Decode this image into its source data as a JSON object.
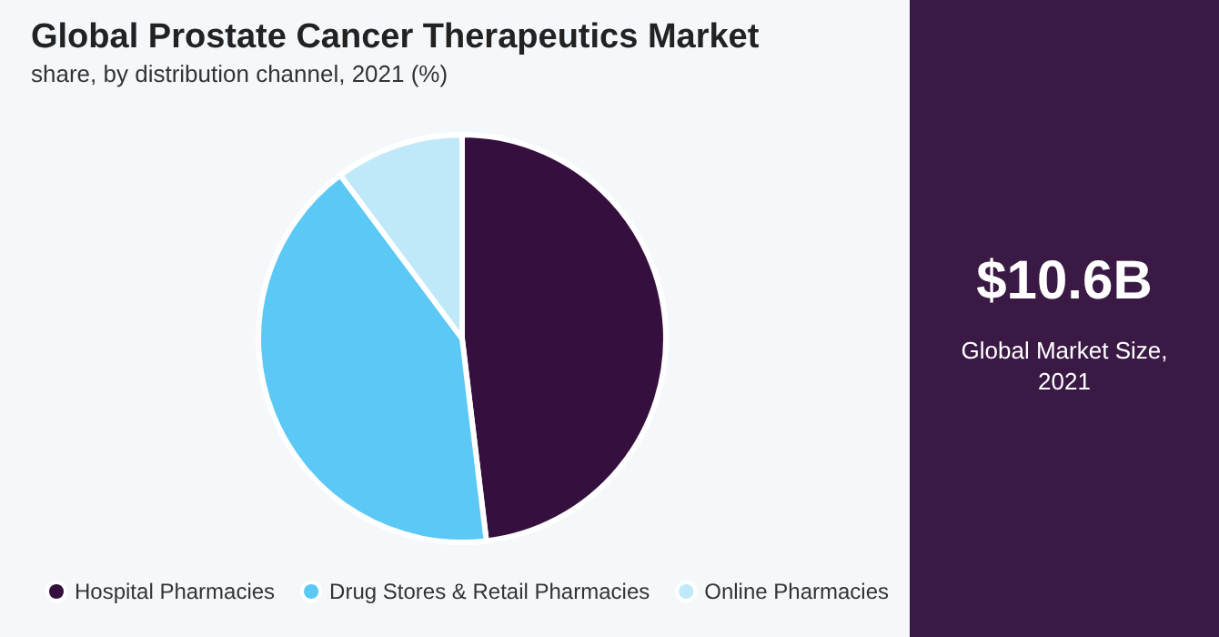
{
  "chart_data": {
    "type": "pie",
    "title": "Global Prostate Cancer Therapeutics Market",
    "subtitle": "share, by distribution channel, 2021 (%)",
    "categories": [
      "Hospital Pharmacies",
      "Drug Stores & Retail Pharmacies",
      "Online Pharmacies"
    ],
    "values": [
      48.1,
      41.7,
      10.2
    ],
    "colors": [
      "#35103f",
      "#5bc8f5",
      "#bfe9f9"
    ],
    "legend": "bottom",
    "annotations": [
      "$10.6B",
      "Global Market Size, 2021"
    ]
  }
}
